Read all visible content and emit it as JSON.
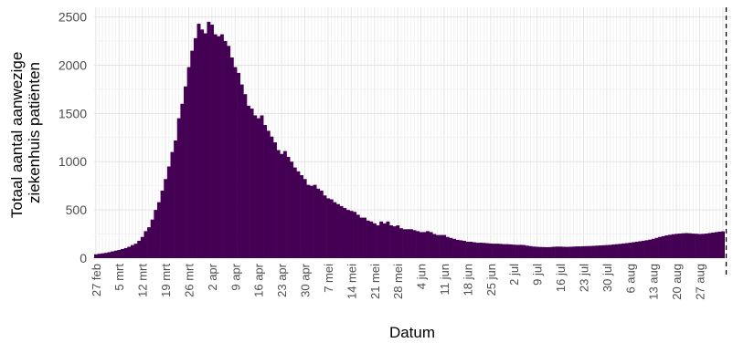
{
  "chart_data": {
    "type": "bar",
    "xlabel": "Datum",
    "ylabel_lines": [
      "Totaal aantal aanwezige",
      "ziekenhuis patiënten"
    ],
    "ylim": [
      0,
      2600
    ],
    "y_ticks": [
      0,
      500,
      1000,
      1500,
      2000,
      2500
    ],
    "x_tick_labels": [
      "27 feb",
      "5 mrt",
      "12 mrt",
      "19 mrt",
      "26 mrt",
      "2 apr",
      "9 apr",
      "16 apr",
      "23 apr",
      "30 apr",
      "7 mei",
      "14 mei",
      "21 mei",
      "28 mei",
      "4 jun",
      "11 jun",
      "18 jun",
      "25 jun",
      "2 jul",
      "9 jul",
      "16 jul",
      "23 jul",
      "30 jul",
      "6 aug",
      "13 aug",
      "20 aug",
      "27 aug"
    ],
    "x_start": "27 feb",
    "grid": true,
    "bar_color": "#440154",
    "reference_line": {
      "x": "27 aug",
      "style": "dashed",
      "color": "#000000"
    },
    "values": [
      40,
      45,
      50,
      55,
      62,
      70,
      78,
      85,
      95,
      105,
      118,
      135,
      150,
      180,
      220,
      280,
      320,
      400,
      500,
      580,
      700,
      820,
      950,
      1100,
      1220,
      1450,
      1600,
      1780,
      1980,
      2150,
      2280,
      2430,
      2370,
      2330,
      2450,
      2420,
      2320,
      2300,
      2320,
      2250,
      2200,
      2080,
      1980,
      1920,
      1800,
      1700,
      1580,
      1550,
      1480,
      1450,
      1480,
      1380,
      1320,
      1260,
      1200,
      1120,
      1080,
      1110,
      1050,
      1000,
      940,
      900,
      860,
      820,
      760,
      750,
      760,
      720,
      700,
      650,
      620,
      610,
      580,
      560,
      540,
      520,
      500,
      490,
      480,
      450,
      420,
      420,
      390,
      380,
      360,
      340,
      380,
      360,
      380,
      340,
      330,
      340,
      310,
      300,
      300,
      300,
      290,
      280,
      270,
      270,
      280,
      270,
      250,
      240,
      240,
      240,
      220,
      210,
      200,
      190,
      185,
      180,
      170,
      170,
      165,
      160,
      160,
      158,
      155,
      152,
      150,
      150,
      148,
      145,
      145,
      143,
      140,
      138,
      138,
      136,
      130,
      125,
      120,
      118,
      116,
      115,
      114,
      115,
      118,
      120,
      120,
      118,
      117,
      118,
      120,
      122,
      122,
      124,
      125,
      126,
      128,
      130,
      132,
      134,
      136,
      138,
      142,
      145,
      148,
      152,
      156,
      160,
      165,
      170,
      175,
      180,
      186,
      192,
      200,
      210,
      220,
      228,
      236,
      242,
      248,
      252,
      255,
      258,
      260,
      258,
      255,
      253,
      250,
      252,
      255,
      260,
      265,
      270,
      275,
      278
    ]
  }
}
